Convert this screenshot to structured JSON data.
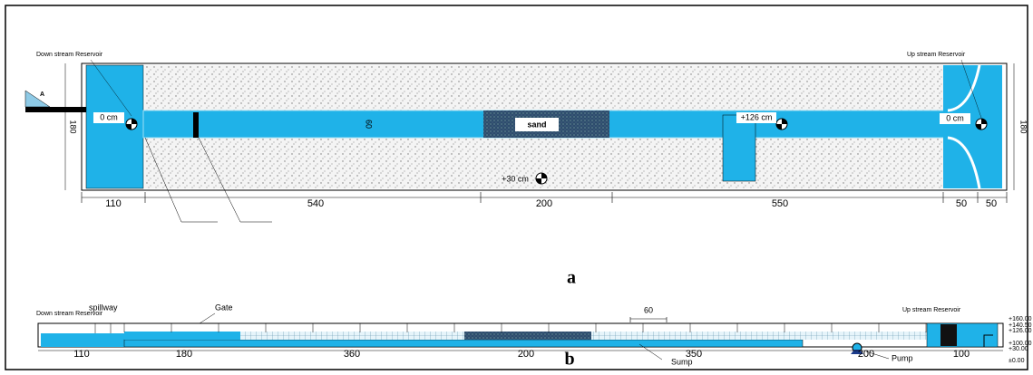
{
  "panel_a": {
    "label": "a",
    "downstream_label": "Down stream Reservoir",
    "upstream_label": "Up stream Reservoir",
    "section_mark": "A",
    "left_width": "180",
    "right_width": "180",
    "left_level": "0 cm",
    "channel_width": "60",
    "sand_label": "sand",
    "mid_level": "+126 cm",
    "right_level": "0 cm",
    "bottom_level": "+30 cm",
    "dimensions": [
      "110",
      "540",
      "200",
      "550",
      "50",
      "50"
    ]
  },
  "panel_b": {
    "label": "b",
    "downstream_label": "Down stream Reservoir",
    "spillway_label": "spillway",
    "gate_label": "Gate",
    "spacing_label": "60",
    "upstream_label": "Up stream Reservoir",
    "elevations": [
      "+160.00",
      "+140.50",
      "+126.00",
      "+100.00",
      "+30.00",
      "±0.00"
    ],
    "dimensions": [
      "110",
      "180",
      "360",
      "200",
      "350",
      "200",
      "100"
    ],
    "sump_label": "Sump",
    "pump_label": "Pump"
  }
}
